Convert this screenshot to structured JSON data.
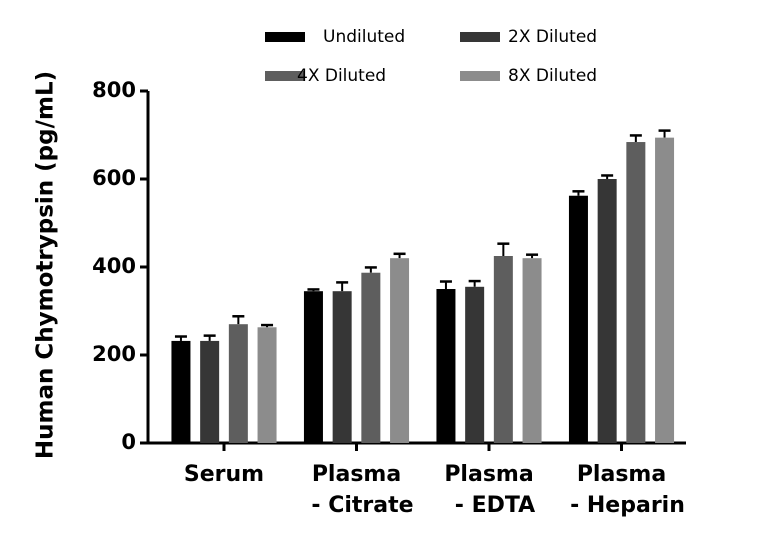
{
  "chart_data": {
    "type": "bar",
    "y_label": "Human  Chymotrypsin (pg/mL)",
    "categories": [
      [
        "Serum"
      ],
      [
        "Plasma",
        "- Citrate"
      ],
      [
        "Plasma",
        "- EDTA"
      ],
      [
        "Plasma",
        "- Heparin"
      ]
    ],
    "series": [
      {
        "name": "Undiluted",
        "color": "#000000",
        "values": [
          232,
          345,
          350,
          562
        ],
        "errors": [
          10,
          4,
          17,
          10
        ]
      },
      {
        "name": "2X Diluted",
        "color": "#363636",
        "values": [
          232,
          345,
          355,
          600
        ],
        "errors": [
          12,
          20,
          13,
          8
        ]
      },
      {
        "name": "4X Diluted",
        "color": "#5e5e5e",
        "values": [
          270,
          387,
          425,
          684
        ],
        "errors": [
          18,
          12,
          28,
          15
        ]
      },
      {
        "name": "8X Diluted",
        "color": "#8c8c8c",
        "values": [
          263,
          420,
          420,
          694
        ],
        "errors": [
          5,
          10,
          8,
          16
        ]
      }
    ],
    "ylim": [
      0,
      800
    ],
    "yticks": [
      0,
      200,
      400,
      600,
      800
    ]
  }
}
